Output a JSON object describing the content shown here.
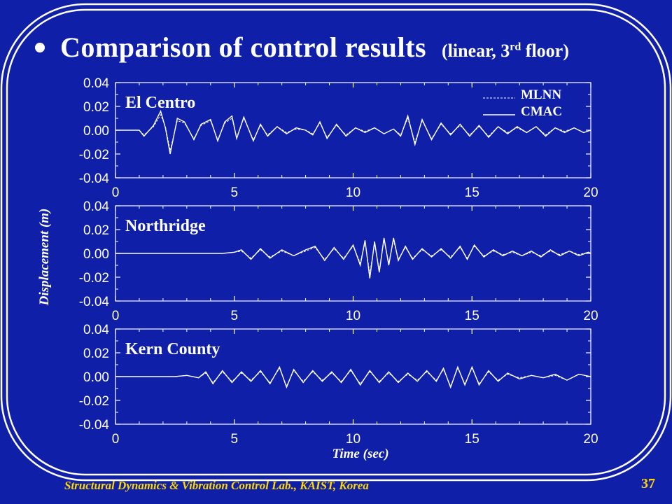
{
  "slide": {
    "title": "Comparison of control results",
    "subtitle_prefix": "(linear, 3",
    "subtitle_sup": "rd",
    "subtitle_suffix": " floor)",
    "footer": "Structural Dynamics & Vibration Control Lab., KAIST, Korea",
    "page_number": "37",
    "colors": {
      "background": "#0f1fa8",
      "foreground": "#ffffff",
      "footer": "#ffd800"
    }
  },
  "chart_data": [
    {
      "type": "line",
      "panel_label": "El Centro",
      "xlabel": "",
      "ylabel": "Displacement (m)",
      "xlim": [
        0,
        20
      ],
      "ylim": [
        -0.04,
        0.04
      ],
      "xticks": [
        "0",
        "5",
        "10",
        "15",
        "20"
      ],
      "yticks": [
        "0.04",
        "0.02",
        "0.00",
        "-0.02",
        "-0.04"
      ],
      "legend": {
        "placement": "top-right",
        "entries": [
          {
            "name": "MLNN",
            "style": "dashed"
          },
          {
            "name": "CMAC",
            "style": "solid"
          }
        ]
      },
      "series": [
        {
          "name": "MLNN",
          "style": "dashed",
          "x": [
            0,
            1.0,
            1.2,
            1.6,
            1.9,
            2.1,
            2.3,
            2.6,
            2.9,
            3.3,
            3.6,
            4.0,
            4.3,
            4.6,
            4.9,
            5.1,
            5.4,
            5.8,
            6.1,
            6.4,
            6.8,
            7.2,
            7.6,
            8.0,
            8.3,
            8.6,
            8.9,
            9.3,
            9.7,
            10.1,
            10.5,
            10.9,
            11.3,
            11.7,
            12.0,
            12.3,
            12.6,
            12.9,
            13.3,
            13.7,
            14.1,
            14.5,
            14.9,
            15.3,
            15.7,
            16.1,
            16.5,
            16.9,
            17.3,
            17.7,
            18.1,
            18.5,
            18.9,
            19.3,
            19.7,
            20
          ],
          "y": [
            0,
            0,
            -0.004,
            0.003,
            0.013,
            0.003,
            -0.017,
            0.008,
            0.006,
            -0.007,
            0.004,
            0.008,
            -0.008,
            0.006,
            0.01,
            -0.006,
            0.01,
            -0.008,
            0.004,
            -0.004,
            0.003,
            -0.002,
            0.001,
            0.0,
            -0.003,
            0.006,
            -0.006,
            0.004,
            -0.004,
            0.002,
            -0.001,
            0.002,
            -0.003,
            0.001,
            -0.004,
            0.01,
            -0.01,
            0.008,
            -0.007,
            0.005,
            -0.003,
            0.004,
            -0.004,
            0.003,
            -0.005,
            0.003,
            -0.002,
            0.002,
            -0.002,
            0.003,
            -0.004,
            0.002,
            -0.001,
            0.002,
            -0.002,
            0.0
          ]
        },
        {
          "name": "CMAC",
          "style": "solid",
          "x": [
            0,
            1.0,
            1.2,
            1.6,
            1.9,
            2.1,
            2.3,
            2.6,
            2.9,
            3.3,
            3.6,
            4.0,
            4.3,
            4.6,
            4.9,
            5.1,
            5.4,
            5.8,
            6.1,
            6.4,
            6.8,
            7.2,
            7.6,
            8.0,
            8.3,
            8.6,
            8.9,
            9.3,
            9.7,
            10.1,
            10.5,
            10.9,
            11.3,
            11.7,
            12.0,
            12.3,
            12.6,
            12.9,
            13.3,
            13.7,
            14.1,
            14.5,
            14.9,
            15.3,
            15.7,
            16.1,
            16.5,
            16.9,
            17.3,
            17.7,
            18.1,
            18.5,
            18.9,
            19.3,
            19.7,
            20
          ],
          "y": [
            0,
            0,
            -0.005,
            0.004,
            0.016,
            0.002,
            -0.02,
            0.01,
            0.007,
            -0.008,
            0.005,
            0.009,
            -0.009,
            0.007,
            0.012,
            -0.007,
            0.011,
            -0.009,
            0.005,
            -0.005,
            0.003,
            -0.003,
            0.002,
            0.0,
            -0.004,
            0.007,
            -0.007,
            0.005,
            -0.005,
            0.002,
            -0.002,
            0.002,
            -0.003,
            0.001,
            -0.005,
            0.012,
            -0.012,
            0.009,
            -0.008,
            0.006,
            -0.004,
            0.005,
            -0.005,
            0.004,
            -0.006,
            0.003,
            -0.003,
            0.003,
            -0.002,
            0.003,
            -0.005,
            0.002,
            -0.002,
            0.002,
            -0.002,
            0.0
          ]
        }
      ]
    },
    {
      "type": "line",
      "panel_label": "Northridge",
      "xlabel": "",
      "ylabel": "Displacement (m)",
      "xlim": [
        0,
        20
      ],
      "ylim": [
        -0.04,
        0.04
      ],
      "xticks": [
        "0",
        "5",
        "10",
        "15",
        "20"
      ],
      "yticks": [
        "0.04",
        "0.02",
        "0.00",
        "-0.02",
        "-0.04"
      ],
      "series": [
        {
          "name": "MLNN",
          "style": "dashed",
          "x": [
            0,
            3.5,
            4.5,
            5.0,
            5.3,
            5.7,
            6.1,
            6.5,
            7.0,
            7.5,
            8.0,
            8.4,
            8.8,
            9.2,
            9.6,
            10.0,
            10.3,
            10.5,
            10.7,
            10.9,
            11.1,
            11.3,
            11.5,
            11.7,
            11.9,
            12.2,
            12.5,
            12.9,
            13.3,
            13.7,
            14.1,
            14.5,
            14.8,
            15.1,
            15.5,
            15.9,
            16.3,
            16.7,
            17.1,
            17.5,
            17.9,
            18.3,
            18.7,
            19.1,
            19.5,
            19.9,
            20
          ],
          "y": [
            0,
            0,
            0.0,
            0.001,
            0.002,
            -0.004,
            0.003,
            -0.003,
            0.002,
            -0.002,
            0.002,
            0.005,
            -0.005,
            0.004,
            -0.004,
            0.006,
            -0.008,
            0.009,
            -0.017,
            0.008,
            -0.014,
            0.011,
            -0.008,
            0.011,
            -0.005,
            0.005,
            -0.004,
            0.003,
            -0.002,
            0.003,
            -0.003,
            0.005,
            -0.004,
            0.006,
            -0.002,
            0.002,
            -0.001,
            0.001,
            -0.002,
            0.001,
            -0.002,
            0.002,
            -0.001,
            0.002,
            -0.001,
            0.001,
            0.0
          ]
        },
        {
          "name": "CMAC",
          "style": "solid",
          "x": [
            0,
            3.5,
            4.5,
            5.0,
            5.3,
            5.7,
            6.1,
            6.5,
            7.0,
            7.5,
            8.0,
            8.4,
            8.8,
            9.2,
            9.6,
            10.0,
            10.3,
            10.5,
            10.7,
            10.9,
            11.1,
            11.3,
            11.5,
            11.7,
            11.9,
            12.2,
            12.5,
            12.9,
            13.3,
            13.7,
            14.1,
            14.5,
            14.8,
            15.1,
            15.5,
            15.9,
            16.3,
            16.7,
            17.1,
            17.5,
            17.9,
            18.3,
            18.7,
            19.1,
            19.5,
            19.9,
            20
          ],
          "y": [
            0,
            0,
            0.0,
            0.001,
            0.003,
            -0.005,
            0.004,
            -0.004,
            0.003,
            -0.002,
            0.003,
            0.006,
            -0.006,
            0.005,
            -0.005,
            0.007,
            -0.01,
            0.011,
            -0.021,
            0.01,
            -0.016,
            0.013,
            -0.01,
            0.013,
            -0.006,
            0.006,
            -0.005,
            0.004,
            -0.003,
            0.004,
            -0.004,
            0.006,
            -0.005,
            0.007,
            -0.003,
            0.003,
            -0.002,
            0.002,
            -0.002,
            0.002,
            -0.003,
            0.003,
            -0.002,
            0.002,
            -0.002,
            0.001,
            0.0
          ]
        }
      ]
    },
    {
      "type": "line",
      "panel_label": "Kern County",
      "xlabel": "Time (sec)",
      "ylabel": "Displacement (m)",
      "xlim": [
        0,
        20
      ],
      "ylim": [
        -0.04,
        0.04
      ],
      "xticks": [
        "0",
        "5",
        "10",
        "15",
        "20"
      ],
      "yticks": [
        "0.04",
        "0.02",
        "0.00",
        "-0.02",
        "-0.04"
      ],
      "series": [
        {
          "name": "MLNN",
          "style": "dashed",
          "x": [
            0,
            2.5,
            3.0,
            3.5,
            3.8,
            4.1,
            4.5,
            4.9,
            5.3,
            5.7,
            6.1,
            6.5,
            6.9,
            7.2,
            7.5,
            7.9,
            8.3,
            8.7,
            9.1,
            9.5,
            9.9,
            10.3,
            10.7,
            11.1,
            11.5,
            11.9,
            12.3,
            12.7,
            13.1,
            13.5,
            13.8,
            14.1,
            14.4,
            14.7,
            15.0,
            15.3,
            15.7,
            16.1,
            16.5,
            17.0,
            17.5,
            18.0,
            18.5,
            19.0,
            19.5,
            20
          ],
          "y": [
            0,
            0,
            0.001,
            -0.001,
            0.003,
            -0.005,
            0.004,
            -0.004,
            0.003,
            -0.003,
            0.004,
            -0.005,
            0.007,
            -0.008,
            0.005,
            -0.004,
            0.004,
            -0.003,
            0.003,
            -0.004,
            0.005,
            -0.006,
            0.004,
            -0.004,
            0.003,
            -0.004,
            0.002,
            -0.003,
            0.004,
            -0.003,
            0.006,
            -0.008,
            0.007,
            -0.006,
            0.007,
            -0.006,
            0.004,
            -0.003,
            0.002,
            -0.001,
            0.001,
            -0.001,
            0.001,
            -0.003,
            0.002,
            0.0
          ]
        },
        {
          "name": "CMAC",
          "style": "solid",
          "x": [
            0,
            2.5,
            3.0,
            3.5,
            3.8,
            4.1,
            4.5,
            4.9,
            5.3,
            5.7,
            6.1,
            6.5,
            6.9,
            7.2,
            7.5,
            7.9,
            8.3,
            8.7,
            9.1,
            9.5,
            9.9,
            10.3,
            10.7,
            11.1,
            11.5,
            11.9,
            12.3,
            12.7,
            13.1,
            13.5,
            13.8,
            14.1,
            14.4,
            14.7,
            15.0,
            15.3,
            15.7,
            16.1,
            16.5,
            17.0,
            17.5,
            18.0,
            18.5,
            19.0,
            19.5,
            20
          ],
          "y": [
            0,
            0,
            0.001,
            -0.001,
            0.004,
            -0.006,
            0.005,
            -0.005,
            0.004,
            -0.004,
            0.005,
            -0.006,
            0.008,
            -0.009,
            0.006,
            -0.005,
            0.005,
            -0.004,
            0.004,
            -0.005,
            0.006,
            -0.007,
            0.005,
            -0.005,
            0.004,
            -0.005,
            0.003,
            -0.004,
            0.005,
            -0.004,
            0.007,
            -0.009,
            0.008,
            -0.007,
            0.008,
            -0.007,
            0.005,
            -0.004,
            0.003,
            -0.002,
            0.001,
            -0.001,
            0.002,
            -0.003,
            0.002,
            0.0
          ]
        }
      ]
    }
  ]
}
